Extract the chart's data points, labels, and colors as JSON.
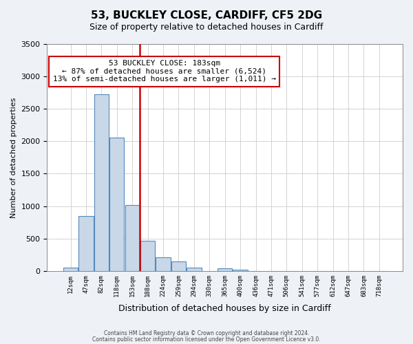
{
  "title": "53, BUCKLEY CLOSE, CARDIFF, CF5 2DG",
  "subtitle": "Size of property relative to detached houses in Cardiff",
  "xlabel": "Distribution of detached houses by size in Cardiff",
  "ylabel": "Number of detached properties",
  "bin_labels": [
    "12sqm",
    "47sqm",
    "82sqm",
    "118sqm",
    "153sqm",
    "188sqm",
    "224sqm",
    "259sqm",
    "294sqm",
    "330sqm",
    "365sqm",
    "400sqm",
    "436sqm",
    "471sqm",
    "506sqm",
    "541sqm",
    "577sqm",
    "612sqm",
    "647sqm",
    "683sqm",
    "718sqm"
  ],
  "bar_heights": [
    55,
    850,
    2720,
    2060,
    1020,
    460,
    205,
    145,
    55,
    0,
    35,
    20,
    0,
    0,
    0,
    0,
    0,
    0,
    0,
    0,
    0
  ],
  "bar_color": "#c8d8e8",
  "bar_edge_color": "#5588bb",
  "vline_color": "#cc0000",
  "ylim": [
    0,
    3500
  ],
  "yticks": [
    0,
    500,
    1000,
    1500,
    2000,
    2500,
    3000,
    3500
  ],
  "annotation_title": "53 BUCKLEY CLOSE: 183sqm",
  "annotation_line1": "← 87% of detached houses are smaller (6,524)",
  "annotation_line2": "13% of semi-detached houses are larger (1,011) →",
  "footnote1": "Contains HM Land Registry data © Crown copyright and database right 2024.",
  "footnote2": "Contains public sector information licensed under the Open Government Licence v3.0.",
  "background_color": "#eef2f7",
  "plot_bg_color": "#ffffff"
}
